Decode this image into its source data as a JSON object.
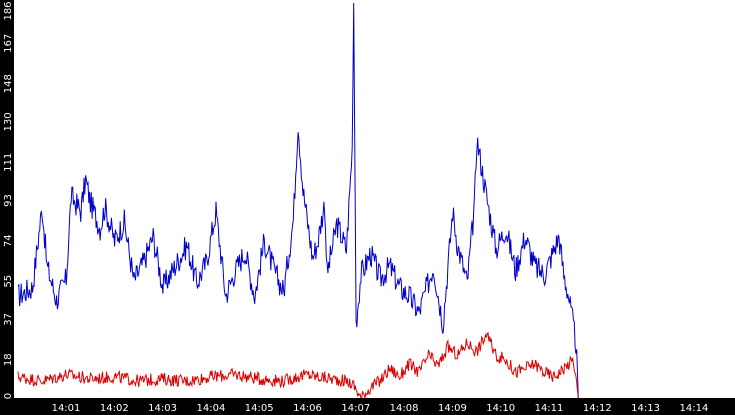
{
  "chart_data": {
    "type": "line",
    "title": "",
    "xlabel": "",
    "ylabel": "",
    "ylim": [
      0,
      186
    ],
    "y_ticks": [
      "0",
      "18",
      "37",
      "55",
      "74",
      "93",
      "111",
      "130",
      "148",
      "167",
      "186"
    ],
    "x_ticks": [
      "14:01",
      "14:02",
      "14:03",
      "14:04",
      "14:05",
      "14:06",
      "14:07",
      "14:08",
      "14:09",
      "14:10",
      "14:11",
      "14:12",
      "14:13",
      "14:14"
    ],
    "grid": false,
    "legend": "none",
    "colors": {
      "background": "#ffffff",
      "axis": "#000000",
      "tick_text": "#ffffff",
      "blue": "#0000cc",
      "red": "#dd0000"
    },
    "series": [
      {
        "color": "#0000cc",
        "x_minutes": [
          0.0,
          0.3,
          0.5,
          0.6,
          0.8,
          1.0,
          1.1,
          1.3,
          1.4,
          1.5,
          1.7,
          1.8,
          2.0,
          2.2,
          2.4,
          2.6,
          2.8,
          3.0,
          3.2,
          3.5,
          3.7,
          3.9,
          4.1,
          4.3,
          4.5,
          4.7,
          4.9,
          5.1,
          5.3,
          5.5,
          5.7,
          5.8,
          5.9,
          6.1,
          6.2,
          6.35,
          6.4,
          6.6,
          6.8,
          6.92,
          6.95,
          7.0,
          7.1,
          7.3,
          7.5,
          7.7,
          7.9,
          8.1,
          8.3,
          8.6,
          8.8,
          9.0,
          9.1,
          9.3,
          9.45,
          9.5,
          9.7,
          9.9,
          10.1,
          10.3,
          10.5,
          10.7,
          10.9,
          11.1,
          11.2,
          11.3,
          11.4,
          11.55,
          11.6
        ],
        "y": [
          48,
          52,
          90,
          62,
          46,
          56,
          95,
          88,
          103,
          92,
          80,
          90,
          74,
          83,
          55,
          64,
          76,
          52,
          60,
          72,
          54,
          64,
          88,
          48,
          60,
          69,
          48,
          74,
          60,
          50,
          84,
          130,
          98,
          66,
          73,
          92,
          58,
          82,
          70,
          118,
          186,
          35,
          58,
          68,
          56,
          62,
          52,
          48,
          40,
          62,
          35,
          88,
          72,
          54,
          90,
          122,
          95,
          70,
          80,
          60,
          76,
          62,
          58,
          70,
          76,
          58,
          48,
          26,
          0
        ],
        "note_peak": 186
      },
      {
        "color": "#dd0000",
        "x_minutes": [
          0.0,
          0.5,
          1.0,
          1.5,
          2.0,
          2.5,
          3.0,
          3.5,
          4.0,
          4.5,
          5.0,
          5.5,
          5.8,
          6.0,
          6.2,
          6.5,
          6.8,
          6.95,
          7.1,
          7.3,
          7.5,
          7.7,
          7.9,
          8.1,
          8.3,
          8.5,
          8.7,
          8.9,
          9.1,
          9.3,
          9.5,
          9.7,
          9.9,
          10.1,
          10.3,
          10.5,
          10.7,
          10.9,
          11.1,
          11.3,
          11.5,
          11.6
        ],
        "y": [
          10,
          8,
          11,
          9,
          10,
          8,
          9,
          8,
          10,
          11,
          9,
          8,
          10,
          11,
          10,
          9,
          8,
          6,
          0,
          5,
          8,
          14,
          10,
          16,
          12,
          20,
          15,
          24,
          20,
          26,
          22,
          30,
          20,
          18,
          12,
          14,
          16,
          12,
          10,
          14,
          18,
          0
        ]
      }
    ]
  }
}
